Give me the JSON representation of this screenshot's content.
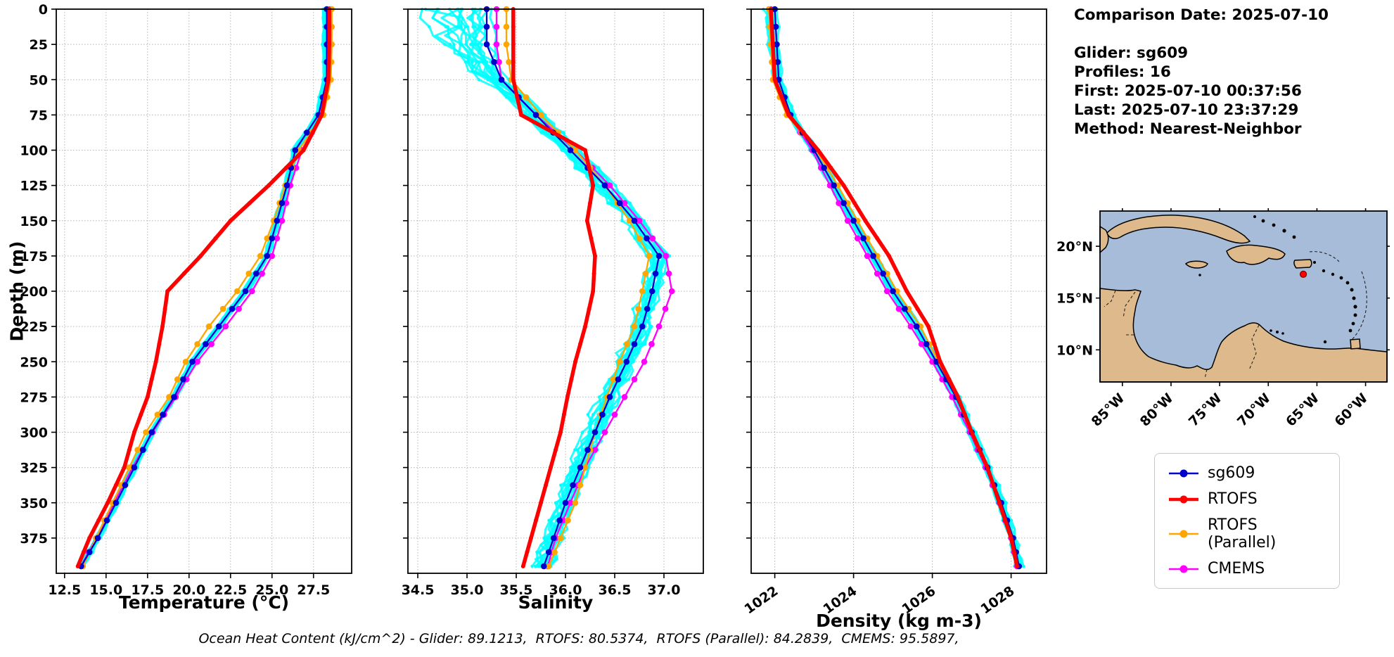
{
  "info": {
    "lines": [
      "Comparison Date: 2025-07-10",
      "",
      "Glider: sg609",
      "Profiles: 16",
      "First: 2025-07-10 00:37:56",
      "Last: 2025-07-10 23:37:29",
      "Method: Nearest-Neighbor"
    ]
  },
  "caption": "Ocean Heat Content (kJ/cm^2) - Glider: 89.1213,  RTOFS: 80.5374,  RTOFS (Parallel): 84.2839,  CMEMS: 95.5897,",
  "legend": {
    "items": [
      {
        "label": "sg609",
        "color": "#0000CD",
        "lw": 2.5
      },
      {
        "label": "RTOFS",
        "color": "#FF0000",
        "lw": 4.5
      },
      {
        "label": "RTOFS (Parallel)",
        "color": "#FFA500",
        "lw": 2.5
      },
      {
        "label": "CMEMS",
        "color": "#FF00FF",
        "lw": 2.5
      }
    ]
  },
  "map": {
    "ocean_color": "#A7BCD8",
    "land_color": "#DDB98C",
    "coast_color": "#000000",
    "lon_range": [
      -87.3,
      -57.8
    ],
    "lat_range": [
      6.9,
      23.4
    ],
    "lon_ticks": [
      {
        "value": -85,
        "label": "85°W"
      },
      {
        "value": -80,
        "label": "80°W"
      },
      {
        "value": -75,
        "label": "75°W"
      },
      {
        "value": -70,
        "label": "70°W"
      },
      {
        "value": -65,
        "label": "65°W"
      },
      {
        "value": -60,
        "label": "60°W"
      }
    ],
    "lat_ticks": [
      {
        "value": 20,
        "label": "20°N"
      },
      {
        "value": 15,
        "label": "15°N"
      },
      {
        "value": 10,
        "label": "10°N"
      }
    ],
    "marker": {
      "lon": -66.4,
      "lat": 17.3,
      "color": "#FF0000"
    }
  },
  "chart_data": [
    {
      "type": "line",
      "title": "",
      "xlabel": "Temperature (°C)",
      "ylabel": "Depth (m)",
      "xlim": [
        12.0,
        29.8
      ],
      "ylim": [
        0,
        400
      ],
      "xticks": [
        12.5,
        15.0,
        17.5,
        20.0,
        22.5,
        25.0,
        27.5
      ],
      "xtick_labels": [
        "12.5",
        "15.0",
        "17.5",
        "20.0",
        "22.5",
        "25.0",
        "27.5"
      ],
      "yticks": [
        0,
        25,
        50,
        75,
        100,
        125,
        150,
        175,
        200,
        225,
        250,
        275,
        300,
        325,
        350,
        375
      ],
      "grid": true,
      "depths": [
        0,
        25,
        50,
        75,
        100,
        125,
        150,
        175,
        200,
        225,
        250,
        275,
        300,
        325,
        350,
        375,
        395
      ],
      "scatter": {
        "name": "glider raw profiles",
        "color": "#00FFFF",
        "profiles": 16,
        "bias": 0.15,
        "jitter": 0.09,
        "surface": 0.35,
        "seed": 11,
        "source": "sg609"
      },
      "series": [
        {
          "name": "sg609",
          "color": "#0000CD",
          "lw": 2.3,
          "marker_r": 4.3,
          "z": 3,
          "values": [
            28.3,
            28.3,
            28.3,
            27.8,
            26.4,
            25.9,
            25.3,
            24.7,
            23.4,
            21.8,
            20.2,
            19.1,
            17.75,
            16.7,
            15.6,
            14.5,
            13.5
          ]
        },
        {
          "name": "RTOFS",
          "color": "#FF0000",
          "lw": 5.5,
          "marker_r": 3.0,
          "z": 4,
          "values": [
            28.45,
            28.45,
            28.4,
            28.0,
            26.9,
            24.8,
            22.5,
            20.7,
            18.7,
            18.4,
            18.0,
            17.5,
            16.7,
            16.1,
            15.1,
            14.0,
            13.3
          ]
        },
        {
          "name": "RTOFS (Parallel)",
          "color": "#FFA500",
          "lw": 2.3,
          "marker_r": 4.3,
          "z": 2,
          "values": [
            28.6,
            28.6,
            28.55,
            28.1,
            26.6,
            25.8,
            25.1,
            24.3,
            22.9,
            21.2,
            19.8,
            18.8,
            17.4,
            16.4,
            15.4,
            14.4,
            13.6
          ]
        },
        {
          "name": "CMEMS",
          "color": "#FF00FF",
          "lw": 2.3,
          "marker_r": 4.3,
          "z": 1,
          "values": [
            28.5,
            28.5,
            28.45,
            28.0,
            26.8,
            26.1,
            25.6,
            25.0,
            23.8,
            22.2,
            20.5,
            19.2,
            17.8,
            16.6,
            15.5,
            14.4,
            13.5
          ]
        }
      ]
    },
    {
      "type": "line",
      "title": "",
      "xlabel": "Salinity",
      "ylabel": "Depth (m)",
      "xlim": [
        34.4,
        37.4
      ],
      "ylim": [
        0,
        400
      ],
      "xticks": [
        34.5,
        35.0,
        35.5,
        36.0,
        36.5,
        37.0
      ],
      "xtick_labels": [
        "34.5",
        "35.0",
        "35.5",
        "36.0",
        "36.5",
        "37.0"
      ],
      "yticks": [
        0,
        25,
        50,
        75,
        100,
        125,
        150,
        175,
        200,
        225,
        250,
        275,
        300,
        325,
        350,
        375
      ],
      "grid": true,
      "depths": [
        0,
        25,
        50,
        75,
        100,
        125,
        150,
        175,
        200,
        225,
        250,
        275,
        300,
        325,
        350,
        375,
        395
      ],
      "scatter": {
        "name": "glider raw profiles",
        "color": "#00FFFF",
        "profiles": 16,
        "bias": 0.09,
        "jitter": 0.06,
        "surface": 0.85,
        "seed": 22,
        "source": "sg609"
      },
      "series": [
        {
          "name": "sg609",
          "color": "#0000CD",
          "lw": 2.3,
          "marker_r": 4.3,
          "z": 3,
          "values": [
            35.2,
            35.2,
            35.35,
            35.7,
            36.05,
            36.4,
            36.7,
            36.95,
            36.88,
            36.78,
            36.62,
            36.45,
            36.3,
            36.15,
            36.0,
            35.88,
            35.78
          ]
        },
        {
          "name": "RTOFS",
          "color": "#FF0000",
          "lw": 5.5,
          "marker_r": 3.0,
          "z": 4,
          "values": [
            35.47,
            35.47,
            35.47,
            35.55,
            36.2,
            36.28,
            36.22,
            36.3,
            36.28,
            36.2,
            36.1,
            36.02,
            35.95,
            35.85,
            35.75,
            35.65,
            35.57
          ]
        },
        {
          "name": "RTOFS (Parallel)",
          "color": "#FFA500",
          "lw": 2.3,
          "marker_r": 4.3,
          "z": 2,
          "values": [
            35.4,
            35.4,
            35.45,
            35.75,
            36.1,
            36.4,
            36.65,
            36.85,
            36.78,
            36.7,
            36.55,
            36.42,
            36.3,
            36.2,
            36.1,
            35.95,
            35.83
          ]
        },
        {
          "name": "CMEMS",
          "color": "#FF00FF",
          "lw": 2.3,
          "marker_r": 4.3,
          "z": 1,
          "values": [
            35.3,
            35.3,
            35.35,
            35.7,
            36.1,
            36.45,
            36.75,
            37.02,
            37.08,
            36.95,
            36.8,
            36.6,
            36.4,
            36.2,
            36.05,
            35.9,
            35.82
          ]
        }
      ]
    },
    {
      "type": "line",
      "title": "",
      "xlabel": "Density (kg m-3)",
      "ylabel": "Depth (m)",
      "xlim": [
        1021.4,
        1028.9
      ],
      "ylim": [
        0,
        400
      ],
      "xticks": [
        1022,
        1024,
        1026,
        1028
      ],
      "xtick_labels": [
        "1022",
        "1024",
        "1026",
        "1028"
      ],
      "yticks": [
        0,
        25,
        50,
        75,
        100,
        125,
        150,
        175,
        200,
        225,
        250,
        275,
        300,
        325,
        350,
        375
      ],
      "grid": true,
      "depths": [
        0,
        25,
        50,
        75,
        100,
        125,
        150,
        175,
        200,
        225,
        250,
        275,
        300,
        325,
        350,
        375,
        395
      ],
      "scatter": {
        "name": "glider raw profiles",
        "color": "#00FFFF",
        "profiles": 16,
        "bias": 0.08,
        "jitter": 0.05,
        "surface": 0.25,
        "seed": 33,
        "source": "sg609"
      },
      "series": [
        {
          "name": "sg609",
          "color": "#0000CD",
          "lw": 2.3,
          "marker_r": 4.3,
          "z": 3,
          "values": [
            1022.0,
            1022.05,
            1022.1,
            1022.4,
            1023.0,
            1023.5,
            1024.0,
            1024.5,
            1025.0,
            1025.6,
            1026.1,
            1026.6,
            1027.0,
            1027.4,
            1027.75,
            1028.05,
            1028.2
          ]
        },
        {
          "name": "RTOFS",
          "color": "#FF0000",
          "lw": 5.5,
          "marker_r": 3.0,
          "z": 4,
          "values": [
            1021.9,
            1021.95,
            1022.0,
            1022.35,
            1023.1,
            1023.75,
            1024.3,
            1024.9,
            1025.35,
            1025.9,
            1026.2,
            1026.65,
            1027.0,
            1027.4,
            1027.7,
            1028.0,
            1028.15
          ]
        },
        {
          "name": "RTOFS (Parallel)",
          "color": "#FFA500",
          "lw": 2.3,
          "marker_r": 4.3,
          "z": 2,
          "values": [
            1021.85,
            1021.9,
            1021.95,
            1022.3,
            1023.05,
            1023.6,
            1024.1,
            1024.6,
            1025.1,
            1025.7,
            1026.15,
            1026.6,
            1027.0,
            1027.4,
            1027.75,
            1028.05,
            1028.2
          ]
        },
        {
          "name": "CMEMS",
          "color": "#FF00FF",
          "lw": 2.3,
          "marker_r": 4.3,
          "z": 1,
          "values": [
            1021.9,
            1021.95,
            1022.0,
            1022.35,
            1022.95,
            1023.4,
            1023.85,
            1024.35,
            1024.85,
            1025.45,
            1026.0,
            1026.5,
            1026.95,
            1027.35,
            1027.7,
            1028.0,
            1028.15
          ]
        }
      ]
    }
  ]
}
